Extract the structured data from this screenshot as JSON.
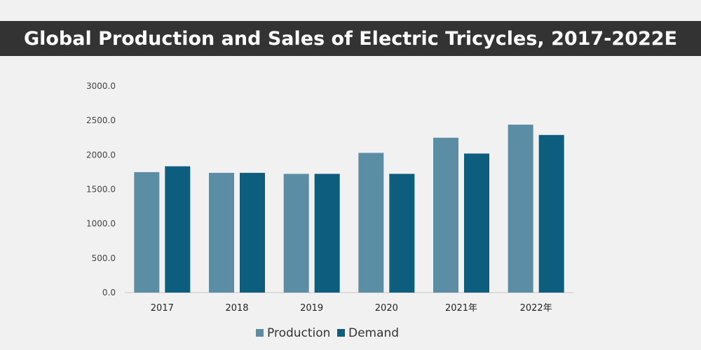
{
  "chart_data": {
    "type": "bar",
    "title": "Global Production and Sales of Electric Tricycles, 2017-2022E",
    "categories": [
      "2017",
      "2018",
      "2019",
      "2020",
      "2021年",
      "2022年"
    ],
    "series": [
      {
        "name": "Production",
        "color": "#5b8ea5",
        "values": [
          1750,
          1740,
          1725,
          2030,
          2250,
          2440
        ]
      },
      {
        "name": "Demand",
        "color": "#0d5d7e",
        "values": [
          1835,
          1740,
          1725,
          1725,
          2020,
          2290
        ]
      }
    ],
    "ylim": [
      0,
      3000
    ],
    "yticks": [
      "0.0",
      "500.0",
      "1000.0",
      "1500.0",
      "2000.0",
      "2500.0",
      "3000.0"
    ],
    "grid": false,
    "legend_position": "bottom"
  }
}
